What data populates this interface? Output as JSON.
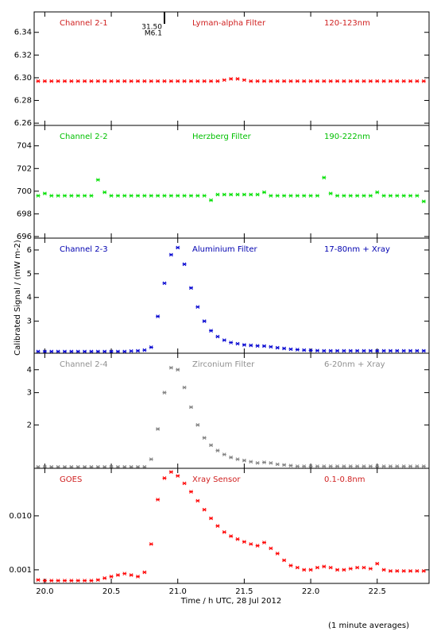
{
  "x": [
    19.95,
    20.0,
    20.05,
    20.1,
    20.15,
    20.2,
    20.25,
    20.3,
    20.35,
    20.4,
    20.45,
    20.5,
    20.55,
    20.6,
    20.65,
    20.7,
    20.75,
    20.8,
    20.85,
    20.9,
    20.95,
    21.0,
    21.05,
    21.1,
    21.15,
    21.2,
    21.25,
    21.3,
    21.35,
    21.4,
    21.45,
    21.5,
    21.55,
    21.6,
    21.65,
    21.7,
    21.75,
    21.8,
    21.85,
    21.9,
    21.95,
    22.0,
    22.05,
    22.1,
    22.15,
    22.2,
    22.25,
    22.3,
    22.35,
    22.4,
    22.45,
    22.5,
    22.55,
    22.6,
    22.65,
    22.7,
    22.75,
    22.8,
    22.85
  ],
  "xlim": [
    19.92,
    22.89
  ],
  "xticks": [
    {
      "value": 20,
      "label": "20.0"
    },
    20.5,
    {
      "value": 21,
      "label": "21.0"
    },
    21.5,
    {
      "value": 22,
      "label": "22.0"
    },
    22.5
  ],
  "xlabel": "Time / h UTC, 28 Jul 2012",
  "ylabel": "Calibrated Signal / (mW m-2)",
  "note": "(1 minute averages)",
  "annotation": {
    "x": 20.9,
    "time": "31.50",
    "class": "M6.1"
  },
  "chart_data": [
    {
      "type": "scatter",
      "labels": [
        "Channel 2-1",
        "Lyman-alpha Filter",
        "120-123nm"
      ],
      "color": "#ff0000",
      "label_color": "#d02020",
      "ylim": [
        6.258,
        6.358
      ],
      "yticks": [
        6.26,
        6.28,
        {
          "value": 6.3,
          "label": "6.30"
        },
        6.32,
        6.34
      ],
      "values": [
        6.297,
        6.297,
        6.297,
        6.297,
        6.297,
        6.297,
        6.297,
        6.297,
        6.297,
        6.297,
        6.297,
        6.297,
        6.297,
        6.297,
        6.297,
        6.297,
        6.297,
        6.297,
        6.297,
        6.297,
        6.297,
        6.297,
        6.297,
        6.297,
        6.297,
        6.297,
        6.297,
        6.297,
        6.298,
        6.299,
        6.299,
        6.298,
        6.297,
        6.297,
        6.297,
        6.297,
        6.297,
        6.297,
        6.297,
        6.297,
        6.297,
        6.297,
        6.297,
        6.297,
        6.297,
        6.297,
        6.297,
        6.297,
        6.297,
        6.297,
        6.297,
        6.297,
        6.297,
        6.297,
        6.297,
        6.297,
        6.297,
        6.297,
        6.297
      ]
    },
    {
      "type": "scatter",
      "labels": [
        "Channel 2-2",
        "Herzberg Filter",
        "190-222nm"
      ],
      "color": "#00e000",
      "label_color": "#00c000",
      "ylim": [
        695.86,
        705.8
      ],
      "yticks": [
        696,
        698,
        700,
        702,
        704
      ],
      "values": [
        699.6,
        699.8,
        699.6,
        699.6,
        699.6,
        699.6,
        699.6,
        699.6,
        699.6,
        701.0,
        699.9,
        699.6,
        699.6,
        699.6,
        699.6,
        699.6,
        699.6,
        699.6,
        699.6,
        699.6,
        699.6,
        699.6,
        699.6,
        699.6,
        699.6,
        699.6,
        699.2,
        699.7,
        699.7,
        699.7,
        699.7,
        699.7,
        699.7,
        699.7,
        699.9,
        699.6,
        699.6,
        699.6,
        699.6,
        699.6,
        699.6,
        699.6,
        699.6,
        701.2,
        699.8,
        699.6,
        699.6,
        699.6,
        699.6,
        699.6,
        699.6,
        699.9,
        699.6,
        699.6,
        699.6,
        699.6,
        699.6,
        699.6,
        699.1
      ]
    },
    {
      "type": "scatter",
      "labels": [
        "Channel 2-3",
        "Aluminium Filter",
        "17-80nm + Xray"
      ],
      "color": "#0000d0",
      "label_color": "#0000b0",
      "ylim": [
        1.65,
        6.5
      ],
      "yticks": [
        3,
        4,
        5,
        6
      ],
      "values": [
        1.72,
        1.72,
        1.72,
        1.72,
        1.72,
        1.72,
        1.72,
        1.72,
        1.72,
        1.72,
        1.72,
        1.72,
        1.72,
        1.72,
        1.74,
        1.75,
        1.78,
        1.9,
        3.2,
        4.6,
        5.8,
        6.1,
        5.4,
        4.4,
        3.6,
        3.0,
        2.6,
        2.35,
        2.2,
        2.1,
        2.05,
        2.0,
        1.98,
        1.96,
        1.95,
        1.92,
        1.88,
        1.85,
        1.82,
        1.8,
        1.78,
        1.77,
        1.76,
        1.75,
        1.75,
        1.75,
        1.75,
        1.75,
        1.75,
        1.75,
        1.75,
        1.75,
        1.75,
        1.75,
        1.75,
        1.75,
        1.75,
        1.75,
        1.75
      ]
    },
    {
      "type": "scatter",
      "labels": [
        "Channel 2-4",
        "Zirconium Filter",
        "6-20nm + Xray"
      ],
      "color": "#808080",
      "label_color": "#909090",
      "log": true,
      "ylim": [
        1.16,
        4.92
      ],
      "yticks": [
        2,
        3,
        4
      ],
      "values": [
        1.18,
        1.18,
        1.18,
        1.18,
        1.18,
        1.18,
        1.18,
        1.18,
        1.18,
        1.18,
        1.18,
        1.18,
        1.18,
        1.18,
        1.18,
        1.18,
        1.18,
        1.3,
        1.9,
        3.0,
        4.1,
        4.0,
        3.2,
        2.5,
        2.0,
        1.7,
        1.55,
        1.45,
        1.38,
        1.33,
        1.3,
        1.28,
        1.26,
        1.24,
        1.25,
        1.24,
        1.22,
        1.21,
        1.2,
        1.19,
        1.19,
        1.19,
        1.19,
        1.19,
        1.19,
        1.19,
        1.19,
        1.19,
        1.19,
        1.19,
        1.19,
        1.19,
        1.19,
        1.19,
        1.19,
        1.19,
        1.19,
        1.19,
        1.19
      ]
    },
    {
      "type": "scatter",
      "labels": [
        "GOES",
        "Xray Sensor",
        "0.1-0.8nm"
      ],
      "color": "#ff0000",
      "label_color": "#d02020",
      "log": true,
      "ylim": [
        0.00056,
        0.076
      ],
      "yticks": [
        {
          "value": 0.001,
          "label": "0.001"
        },
        {
          "value": 0.01,
          "label": "0.010"
        }
      ],
      "values": [
        0.00065,
        0.00063,
        0.00063,
        0.00063,
        0.00063,
        0.00063,
        0.00063,
        0.00063,
        0.00063,
        0.00065,
        0.0007,
        0.00075,
        0.0008,
        0.00085,
        0.0008,
        0.00075,
        0.0009,
        0.003,
        0.02,
        0.05,
        0.065,
        0.055,
        0.04,
        0.028,
        0.019,
        0.013,
        0.009,
        0.0065,
        0.005,
        0.0042,
        0.0037,
        0.0033,
        0.003,
        0.0028,
        0.0032,
        0.0025,
        0.002,
        0.0015,
        0.0012,
        0.0011,
        0.001,
        0.001,
        0.0011,
        0.00115,
        0.0011,
        0.001,
        0.001,
        0.00105,
        0.0011,
        0.0011,
        0.00105,
        0.0013,
        0.001,
        0.00095,
        0.00095,
        0.00095,
        0.00095,
        0.00095,
        0.00095
      ]
    }
  ]
}
